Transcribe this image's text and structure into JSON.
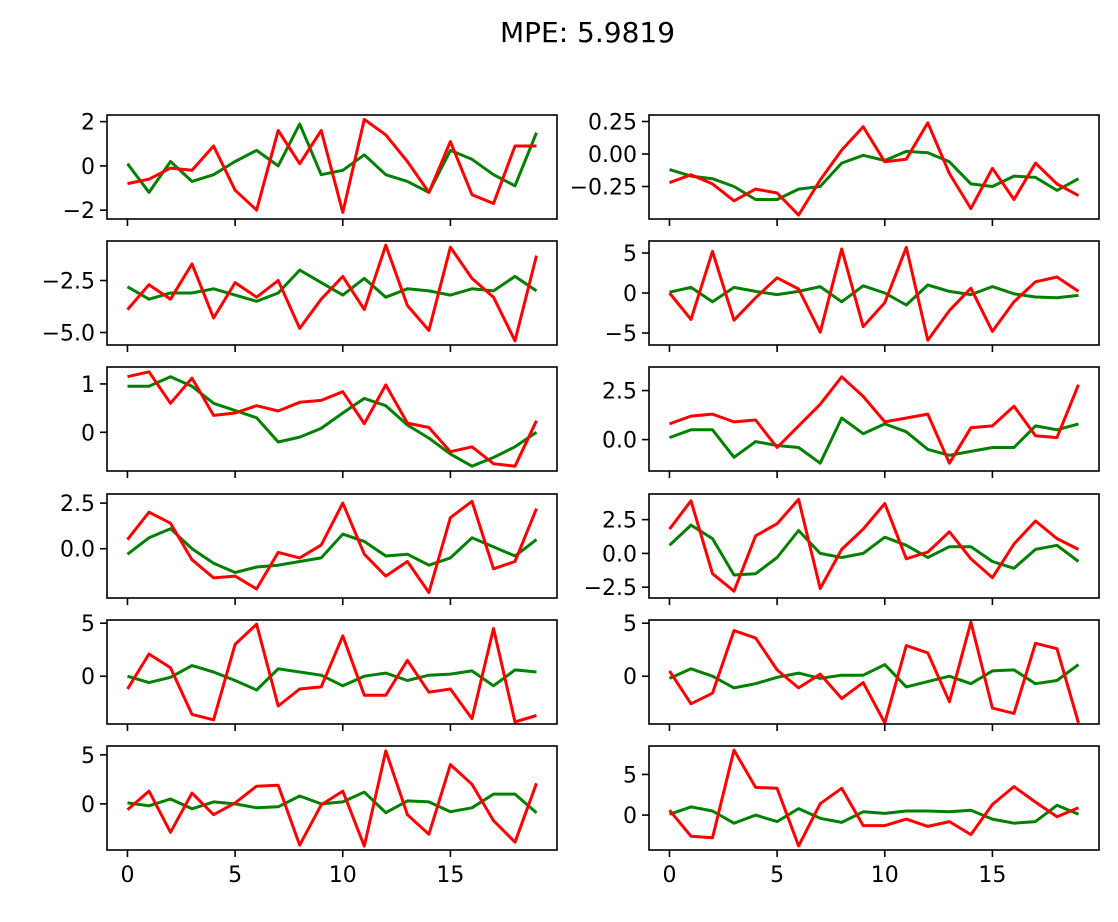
{
  "title": "MPE: 5.9819",
  "colors": {
    "green": "#008000",
    "red": "#ff0000"
  },
  "chart_data": [
    {
      "type": "line",
      "ylim": [
        -2.4,
        2.3
      ],
      "yticks": [
        2,
        0,
        -2
      ],
      "yticklabels": [
        "2",
        "0",
        "−2"
      ],
      "x": [
        0,
        1,
        2,
        3,
        4,
        5,
        6,
        7,
        8,
        9,
        10,
        11,
        12,
        13,
        14,
        15,
        16,
        17,
        18,
        19
      ],
      "series": [
        {
          "color": "green",
          "values": [
            0.1,
            -1.2,
            0.2,
            -0.7,
            -0.4,
            0.2,
            0.7,
            0.0,
            1.9,
            -0.4,
            -0.2,
            0.5,
            -0.4,
            -0.7,
            -1.2,
            0.7,
            0.3,
            -0.4,
            -0.9,
            1.5
          ]
        },
        {
          "color": "red",
          "values": [
            -0.8,
            -0.6,
            -0.1,
            -0.2,
            0.9,
            -1.1,
            -2.0,
            1.6,
            0.1,
            1.6,
            -2.1,
            2.1,
            1.4,
            0.2,
            -1.2,
            1.1,
            -1.3,
            -1.7,
            0.9,
            0.9
          ]
        }
      ]
    },
    {
      "type": "line",
      "ylim": [
        -0.5,
        0.3
      ],
      "yticks": [
        0.25,
        0.0,
        -0.25
      ],
      "yticklabels": [
        "0.25",
        "0.00",
        "−0.25"
      ],
      "x": [
        0,
        1,
        2,
        3,
        4,
        5,
        6,
        7,
        8,
        9,
        10,
        11,
        12,
        13,
        14,
        15,
        16,
        17,
        18,
        19
      ],
      "series": [
        {
          "color": "green",
          "values": [
            -0.12,
            -0.17,
            -0.19,
            -0.25,
            -0.35,
            -0.35,
            -0.27,
            -0.25,
            -0.07,
            -0.01,
            -0.05,
            0.02,
            0.01,
            -0.06,
            -0.23,
            -0.25,
            -0.17,
            -0.18,
            -0.28,
            -0.19
          ]
        },
        {
          "color": "red",
          "values": [
            -0.22,
            -0.16,
            -0.23,
            -0.36,
            -0.27,
            -0.3,
            -0.47,
            -0.2,
            0.03,
            0.21,
            -0.06,
            -0.04,
            0.24,
            -0.15,
            -0.42,
            -0.11,
            -0.35,
            -0.07,
            -0.23,
            -0.32
          ]
        }
      ]
    },
    {
      "type": "line",
      "ylim": [
        -5.6,
        -0.6
      ],
      "yticks": [
        -2.5,
        -5.0
      ],
      "yticklabels": [
        "−2.5",
        "−5.0"
      ],
      "x": [
        0,
        1,
        2,
        3,
        4,
        5,
        6,
        7,
        8,
        9,
        10,
        11,
        12,
        13,
        14,
        15,
        16,
        17,
        18,
        19
      ],
      "series": [
        {
          "color": "green",
          "values": [
            -2.8,
            -3.4,
            -3.1,
            -3.1,
            -2.9,
            -3.2,
            -3.5,
            -3.1,
            -2.0,
            -2.6,
            -3.2,
            -2.4,
            -3.3,
            -2.9,
            -3.0,
            -3.2,
            -2.9,
            -3.0,
            -2.3,
            -3.0
          ]
        },
        {
          "color": "red",
          "values": [
            -3.9,
            -2.7,
            -3.4,
            -1.7,
            -4.3,
            -2.6,
            -3.3,
            -2.5,
            -4.8,
            -3.4,
            -2.3,
            -3.9,
            -0.8,
            -3.7,
            -4.9,
            -0.9,
            -2.4,
            -3.3,
            -5.4,
            -1.3
          ]
        }
      ]
    },
    {
      "type": "line",
      "ylim": [
        -6.5,
        6.5
      ],
      "yticks": [
        5,
        0,
        -5
      ],
      "yticklabels": [
        "5",
        "0",
        "−5"
      ],
      "x": [
        0,
        1,
        2,
        3,
        4,
        5,
        6,
        7,
        8,
        9,
        10,
        11,
        12,
        13,
        14,
        15,
        16,
        17,
        18,
        19
      ],
      "series": [
        {
          "color": "green",
          "values": [
            0.1,
            0.7,
            -1.1,
            0.7,
            0.2,
            -0.2,
            0.2,
            0.8,
            -1.1,
            0.9,
            0.0,
            -1.5,
            1.0,
            0.2,
            -0.2,
            0.8,
            -0.1,
            -0.5,
            -0.6,
            -0.3
          ]
        },
        {
          "color": "red",
          "values": [
            0.0,
            -3.3,
            5.2,
            -3.4,
            -0.6,
            1.9,
            0.5,
            -4.9,
            5.5,
            -4.2,
            -1.2,
            5.7,
            -5.9,
            -2.2,
            0.6,
            -4.8,
            -1.1,
            1.4,
            2.0,
            0.2
          ]
        }
      ]
    },
    {
      "type": "line",
      "ylim": [
        -0.8,
        1.35
      ],
      "yticks": [
        1,
        0
      ],
      "yticklabels": [
        "1",
        "0"
      ],
      "x": [
        0,
        1,
        2,
        3,
        4,
        5,
        6,
        7,
        8,
        9,
        10,
        11,
        12,
        13,
        14,
        15,
        16,
        17,
        18,
        19
      ],
      "series": [
        {
          "color": "green",
          "values": [
            0.95,
            0.95,
            1.15,
            0.95,
            0.6,
            0.45,
            0.3,
            -0.2,
            -0.1,
            0.08,
            0.4,
            0.7,
            0.55,
            0.15,
            -0.12,
            -0.45,
            -0.7,
            -0.52,
            -0.3,
            0.0
          ]
        },
        {
          "color": "red",
          "values": [
            1.15,
            1.25,
            0.6,
            1.12,
            0.35,
            0.4,
            0.55,
            0.44,
            0.62,
            0.66,
            0.84,
            0.18,
            0.98,
            0.19,
            0.1,
            -0.4,
            -0.3,
            -0.65,
            -0.7,
            0.24
          ]
        }
      ]
    },
    {
      "type": "line",
      "ylim": [
        -1.6,
        3.7
      ],
      "yticks": [
        2.5,
        0.0
      ],
      "yticklabels": [
        "2.5",
        "0.0"
      ],
      "x": [
        0,
        1,
        2,
        3,
        4,
        5,
        6,
        7,
        8,
        9,
        10,
        11,
        12,
        13,
        14,
        15,
        16,
        17,
        18,
        19
      ],
      "series": [
        {
          "color": "green",
          "values": [
            0.1,
            0.5,
            0.5,
            -0.9,
            -0.1,
            -0.3,
            -0.4,
            -1.2,
            1.1,
            0.3,
            0.8,
            0.4,
            -0.5,
            -0.8,
            -0.6,
            -0.4,
            -0.4,
            0.7,
            0.5,
            0.8
          ]
        },
        {
          "color": "red",
          "values": [
            0.8,
            1.2,
            1.3,
            0.9,
            1.0,
            -0.4,
            0.7,
            1.8,
            3.2,
            2.2,
            0.9,
            1.1,
            1.3,
            -1.2,
            0.6,
            0.7,
            1.7,
            0.2,
            0.1,
            2.8
          ]
        }
      ]
    },
    {
      "type": "line",
      "ylim": [
        -2.7,
        3.0
      ],
      "yticks": [
        2.5,
        0.0
      ],
      "yticklabels": [
        "2.5",
        "0.0"
      ],
      "x": [
        0,
        1,
        2,
        3,
        4,
        5,
        6,
        7,
        8,
        9,
        10,
        11,
        12,
        13,
        14,
        15,
        16,
        17,
        18,
        19
      ],
      "series": [
        {
          "color": "green",
          "values": [
            -0.3,
            0.6,
            1.1,
            0.0,
            -0.8,
            -1.3,
            -1.0,
            -0.9,
            -0.7,
            -0.5,
            0.8,
            0.4,
            -0.4,
            -0.3,
            -0.9,
            -0.5,
            0.6,
            0.1,
            -0.4,
            0.5
          ]
        },
        {
          "color": "red",
          "values": [
            0.5,
            2.0,
            1.4,
            -0.6,
            -1.6,
            -1.5,
            -2.2,
            -0.2,
            -0.5,
            0.2,
            2.5,
            -0.3,
            -1.5,
            -0.7,
            -2.4,
            1.7,
            2.6,
            -1.1,
            -0.7,
            2.2
          ]
        }
      ]
    },
    {
      "type": "line",
      "ylim": [
        -3.3,
        4.4
      ],
      "yticks": [
        2.5,
        0.0,
        -2.5
      ],
      "yticklabels": [
        "2.5",
        "0.0",
        "−2.5"
      ],
      "x": [
        0,
        1,
        2,
        3,
        4,
        5,
        6,
        7,
        8,
        9,
        10,
        11,
        12,
        13,
        14,
        15,
        16,
        17,
        18,
        19
      ],
      "series": [
        {
          "color": "green",
          "values": [
            0.6,
            2.1,
            1.1,
            -1.6,
            -1.5,
            -0.3,
            1.7,
            0.0,
            -0.3,
            0.0,
            1.2,
            0.6,
            -0.3,
            0.5,
            0.5,
            -0.6,
            -1.1,
            0.3,
            0.6,
            -0.6
          ]
        },
        {
          "color": "red",
          "values": [
            1.8,
            3.9,
            -1.5,
            -2.8,
            1.3,
            2.2,
            4.0,
            -2.6,
            0.3,
            1.8,
            3.7,
            -0.4,
            0.1,
            1.6,
            -0.4,
            -1.8,
            0.7,
            2.4,
            1.1,
            0.3
          ]
        }
      ]
    },
    {
      "type": "line",
      "ylim": [
        -4.5,
        5.3
      ],
      "yticks": [
        5,
        0
      ],
      "yticklabels": [
        "5",
        "0"
      ],
      "x": [
        0,
        1,
        2,
        3,
        4,
        5,
        6,
        7,
        8,
        9,
        10,
        11,
        12,
        13,
        14,
        15,
        16,
        17,
        18,
        19
      ],
      "series": [
        {
          "color": "green",
          "values": [
            0.0,
            -0.6,
            -0.1,
            1.0,
            0.4,
            -0.4,
            -1.3,
            0.7,
            0.4,
            0.1,
            -0.9,
            0.0,
            0.3,
            -0.4,
            0.1,
            0.2,
            0.5,
            -0.9,
            0.6,
            0.4
          ]
        },
        {
          "color": "red",
          "values": [
            -1.2,
            2.1,
            0.8,
            -3.6,
            -4.1,
            3.0,
            4.9,
            -2.8,
            -1.2,
            -1.0,
            3.8,
            -1.8,
            -1.8,
            1.5,
            -1.5,
            -1.2,
            -4.0,
            4.5,
            -4.3,
            -3.7
          ]
        }
      ]
    },
    {
      "type": "line",
      "ylim": [
        -4.5,
        5.3
      ],
      "yticks": [
        5,
        0
      ],
      "yticklabels": [
        "5",
        "0"
      ],
      "x": [
        0,
        1,
        2,
        3,
        4,
        5,
        6,
        7,
        8,
        9,
        10,
        11,
        12,
        13,
        14,
        15,
        16,
        17,
        18,
        19
      ],
      "series": [
        {
          "color": "green",
          "values": [
            -0.2,
            0.7,
            0.0,
            -1.1,
            -0.7,
            -0.1,
            0.3,
            -0.2,
            0.1,
            0.1,
            1.1,
            -1.0,
            -0.5,
            0.0,
            -0.7,
            0.5,
            0.6,
            -0.7,
            -0.4,
            1.1
          ]
        },
        {
          "color": "red",
          "values": [
            0.5,
            -2.6,
            -1.6,
            4.3,
            3.6,
            0.6,
            -1.1,
            0.2,
            -2.1,
            -0.6,
            -4.4,
            2.9,
            2.2,
            -2.4,
            5.1,
            -3.0,
            -3.5,
            3.1,
            2.6,
            -4.4
          ]
        }
      ]
    },
    {
      "type": "line",
      "ylim": [
        -4.7,
        5.9
      ],
      "yticks": [
        5,
        0
      ],
      "yticklabels": [
        "5",
        "0"
      ],
      "x": [
        0,
        1,
        2,
        3,
        4,
        5,
        6,
        7,
        8,
        9,
        10,
        11,
        12,
        13,
        14,
        15,
        16,
        17,
        18,
        19
      ],
      "series": [
        {
          "color": "green",
          "values": [
            0.1,
            -0.2,
            0.5,
            -0.5,
            0.2,
            0.0,
            -0.4,
            -0.3,
            0.8,
            0.0,
            0.2,
            1.2,
            -0.9,
            0.3,
            0.2,
            -0.8,
            -0.4,
            1.0,
            1.0,
            -0.9
          ]
        },
        {
          "color": "red",
          "values": [
            -0.6,
            1.3,
            -2.9,
            1.1,
            -1.1,
            0.1,
            1.8,
            1.9,
            -4.2,
            -0.1,
            1.3,
            -4.3,
            5.4,
            -1.1,
            -3.1,
            4.0,
            2.0,
            -1.7,
            -3.9,
            2.1
          ]
        }
      ]
    },
    {
      "type": "line",
      "ylim": [
        -4.3,
        8.5
      ],
      "yticks": [
        5,
        0
      ],
      "yticklabels": [
        "5",
        "0"
      ],
      "x": [
        0,
        1,
        2,
        3,
        4,
        5,
        6,
        7,
        8,
        9,
        10,
        11,
        12,
        13,
        14,
        15,
        16,
        17,
        18,
        19
      ],
      "series": [
        {
          "color": "green",
          "values": [
            0.1,
            1.0,
            0.5,
            -1.0,
            0.0,
            -0.8,
            0.8,
            -0.4,
            -0.9,
            0.4,
            0.2,
            0.5,
            0.5,
            0.4,
            0.6,
            -0.5,
            -1.0,
            -0.8,
            1.2,
            0.1
          ]
        },
        {
          "color": "red",
          "values": [
            0.6,
            -2.6,
            -2.8,
            8.0,
            3.4,
            3.3,
            -3.8,
            1.4,
            3.3,
            -1.3,
            -1.3,
            -0.5,
            -1.4,
            -0.8,
            -2.4,
            1.3,
            3.5,
            1.6,
            -0.2,
            0.9
          ]
        }
      ]
    }
  ],
  "xticks": [
    0,
    5,
    10,
    15
  ],
  "xticklabels": [
    "0",
    "5",
    "10",
    "15"
  ],
  "xlim": [
    -0.95,
    19.95
  ]
}
